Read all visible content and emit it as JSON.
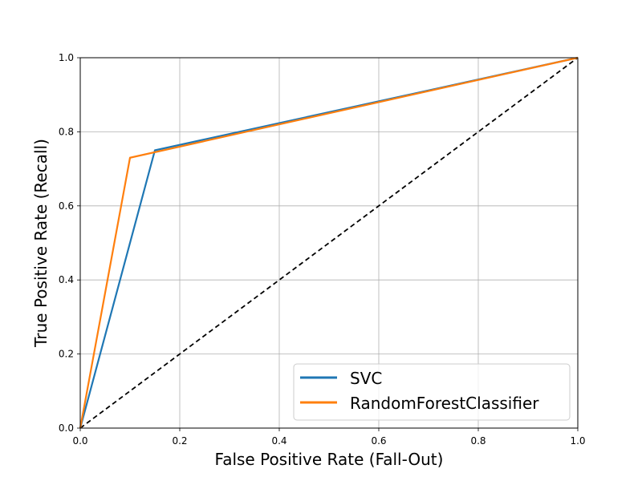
{
  "chart_data": {
    "type": "line",
    "title": "",
    "xlabel": "False Positive Rate (Fall-Out)",
    "ylabel": "True Positive Rate (Recall)",
    "xlim": [
      0,
      1
    ],
    "ylim": [
      0,
      1
    ],
    "xticks": [
      "0.0",
      "0.2",
      "0.4",
      "0.6",
      "0.8",
      "1.0"
    ],
    "yticks": [
      "0.0",
      "0.2",
      "0.4",
      "0.6",
      "0.8",
      "1.0"
    ],
    "grid": true,
    "legend_position": "lower-right",
    "series": [
      {
        "name": "SVC",
        "color": "#1f77b4",
        "x": [
          0.0,
          0.15,
          1.0
        ],
        "y": [
          0.0,
          0.75,
          1.0
        ]
      },
      {
        "name": "RandomForestClassifier",
        "color": "#ff7f0e",
        "x": [
          0.0,
          0.1,
          1.0
        ],
        "y": [
          0.0,
          0.73,
          1.0
        ]
      }
    ],
    "reference_line": {
      "style": "dashed",
      "color": "#000000",
      "x": [
        0,
        1
      ],
      "y": [
        0,
        1
      ]
    }
  }
}
